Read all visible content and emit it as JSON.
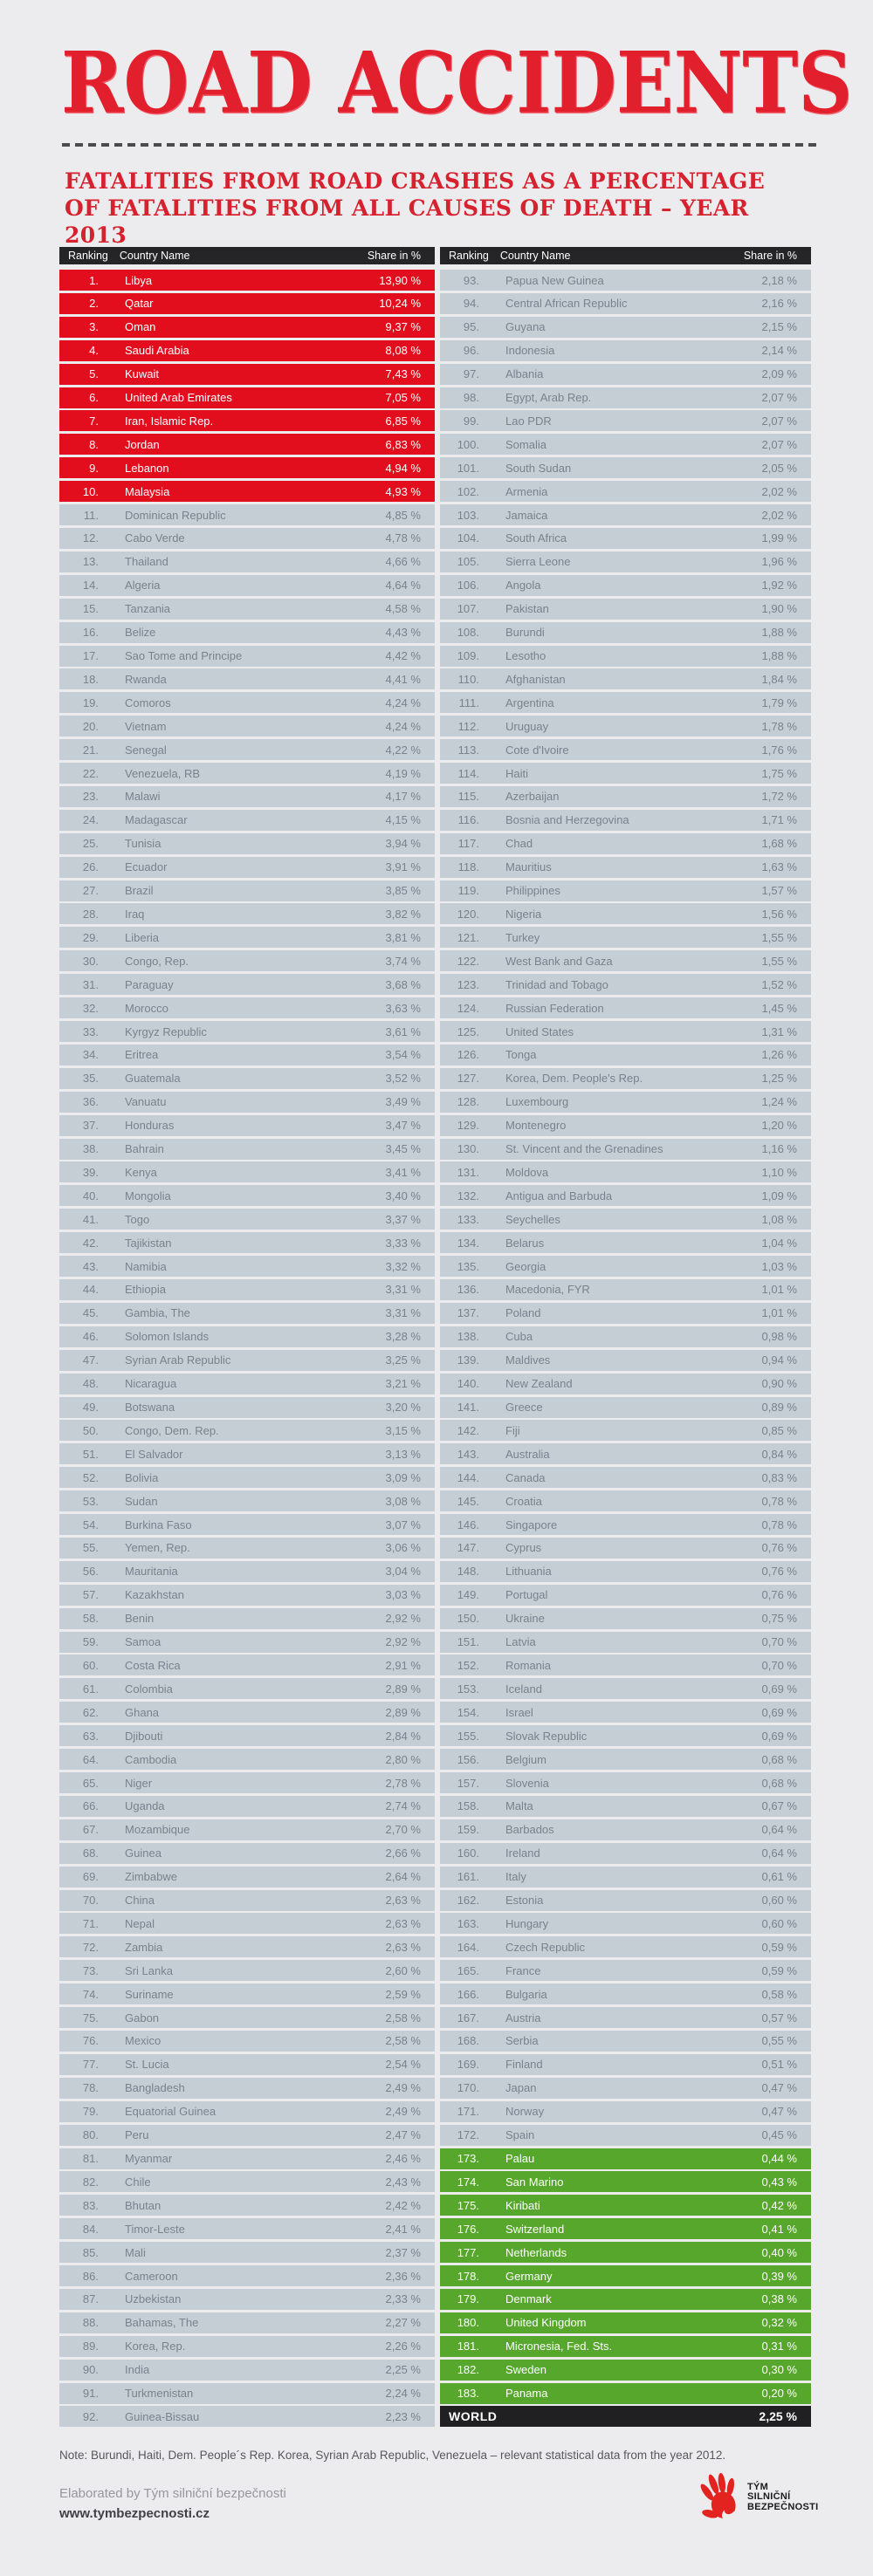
{
  "page": {
    "title": "ROAD ACCIDENTS",
    "subtitle_line1": "FATALITIES FROM ROAD CRASHES AS A PERCENTAGE",
    "subtitle_line2": "OF FATALITIES FROM ALL CAUSES OF DEATH – YEAR 2013"
  },
  "table_headers": {
    "ranking": "Ranking",
    "country": "Country Name",
    "share": "Share in %"
  },
  "chart_data": {
    "type": "table",
    "title": "ROAD ACCIDENTS",
    "subtitle": "FATALITIES FROM ROAD CRASHES AS A PERCENTAGE OF FATALITIES FROM ALL CAUSES OF DEATH – YEAR 2013",
    "columns": [
      "Ranking",
      "Country Name",
      "Share in %"
    ],
    "split_index": 92,
    "highlight": {
      "red_max_rank": 10,
      "green_min_rank": 173
    },
    "rows": [
      {
        "rank": 1,
        "country": "Libya",
        "share": "13,90 %"
      },
      {
        "rank": 2,
        "country": "Qatar",
        "share": "10,24 %"
      },
      {
        "rank": 3,
        "country": "Oman",
        "share": "9,37 %"
      },
      {
        "rank": 4,
        "country": "Saudi Arabia",
        "share": "8,08 %"
      },
      {
        "rank": 5,
        "country": "Kuwait",
        "share": "7,43 %"
      },
      {
        "rank": 6,
        "country": "United Arab Emirates",
        "share": "7,05 %"
      },
      {
        "rank": 7,
        "country": "Iran, Islamic Rep.",
        "share": "6,85 %"
      },
      {
        "rank": 8,
        "country": "Jordan",
        "share": "6,83 %"
      },
      {
        "rank": 9,
        "country": "Lebanon",
        "share": "4,94 %"
      },
      {
        "rank": 10,
        "country": "Malaysia",
        "share": "4,93 %"
      },
      {
        "rank": 11,
        "country": "Dominican Republic",
        "share": "4,85 %"
      },
      {
        "rank": 12,
        "country": "Cabo Verde",
        "share": "4,78 %"
      },
      {
        "rank": 13,
        "country": "Thailand",
        "share": "4,66 %"
      },
      {
        "rank": 14,
        "country": "Algeria",
        "share": "4,64 %"
      },
      {
        "rank": 15,
        "country": "Tanzania",
        "share": "4,58 %"
      },
      {
        "rank": 16,
        "country": "Belize",
        "share": "4,43 %"
      },
      {
        "rank": 17,
        "country": "Sao Tome and Principe",
        "share": "4,42 %"
      },
      {
        "rank": 18,
        "country": "Rwanda",
        "share": "4,41 %"
      },
      {
        "rank": 19,
        "country": "Comoros",
        "share": "4,24 %"
      },
      {
        "rank": 20,
        "country": "Vietnam",
        "share": "4,24 %"
      },
      {
        "rank": 21,
        "country": "Senegal",
        "share": "4,22 %"
      },
      {
        "rank": 22,
        "country": "Venezuela, RB",
        "share": "4,19 %"
      },
      {
        "rank": 23,
        "country": "Malawi",
        "share": "4,17 %"
      },
      {
        "rank": 24,
        "country": "Madagascar",
        "share": "4,15 %"
      },
      {
        "rank": 25,
        "country": "Tunisia",
        "share": "3,94 %"
      },
      {
        "rank": 26,
        "country": "Ecuador",
        "share": "3,91 %"
      },
      {
        "rank": 27,
        "country": "Brazil",
        "share": "3,85 %"
      },
      {
        "rank": 28,
        "country": "Iraq",
        "share": "3,82 %"
      },
      {
        "rank": 29,
        "country": "Liberia",
        "share": "3,81 %"
      },
      {
        "rank": 30,
        "country": "Congo, Rep.",
        "share": "3,74 %"
      },
      {
        "rank": 31,
        "country": "Paraguay",
        "share": "3,68 %"
      },
      {
        "rank": 32,
        "country": "Morocco",
        "share": "3,63 %"
      },
      {
        "rank": 33,
        "country": "Kyrgyz Republic",
        "share": "3,61 %"
      },
      {
        "rank": 34,
        "country": "Eritrea",
        "share": "3,54 %"
      },
      {
        "rank": 35,
        "country": "Guatemala",
        "share": "3,52 %"
      },
      {
        "rank": 36,
        "country": "Vanuatu",
        "share": "3,49 %"
      },
      {
        "rank": 37,
        "country": "Honduras",
        "share": "3,47 %"
      },
      {
        "rank": 38,
        "country": "Bahrain",
        "share": "3,45 %"
      },
      {
        "rank": 39,
        "country": "Kenya",
        "share": "3,41 %"
      },
      {
        "rank": 40,
        "country": "Mongolia",
        "share": "3,40 %"
      },
      {
        "rank": 41,
        "country": "Togo",
        "share": "3,37 %"
      },
      {
        "rank": 42,
        "country": "Tajikistan",
        "share": "3,33 %"
      },
      {
        "rank": 43,
        "country": "Namibia",
        "share": "3,32 %"
      },
      {
        "rank": 44,
        "country": "Ethiopia",
        "share": "3,31 %"
      },
      {
        "rank": 45,
        "country": "Gambia, The",
        "share": "3,31 %"
      },
      {
        "rank": 46,
        "country": "Solomon Islands",
        "share": "3,28 %"
      },
      {
        "rank": 47,
        "country": "Syrian Arab Republic",
        "share": "3,25 %"
      },
      {
        "rank": 48,
        "country": "Nicaragua",
        "share": "3,21 %"
      },
      {
        "rank": 49,
        "country": "Botswana",
        "share": "3,20 %"
      },
      {
        "rank": 50,
        "country": "Congo, Dem. Rep.",
        "share": "3,15 %"
      },
      {
        "rank": 51,
        "country": "El Salvador",
        "share": "3,13 %"
      },
      {
        "rank": 52,
        "country": "Bolivia",
        "share": "3,09 %"
      },
      {
        "rank": 53,
        "country": "Sudan",
        "share": "3,08 %"
      },
      {
        "rank": 54,
        "country": "Burkina Faso",
        "share": "3,07 %"
      },
      {
        "rank": 55,
        "country": "Yemen, Rep.",
        "share": "3,06 %"
      },
      {
        "rank": 56,
        "country": "Mauritania",
        "share": "3,04 %"
      },
      {
        "rank": 57,
        "country": "Kazakhstan",
        "share": "3,03 %"
      },
      {
        "rank": 58,
        "country": "Benin",
        "share": "2,92 %"
      },
      {
        "rank": 59,
        "country": "Samoa",
        "share": "2,92 %"
      },
      {
        "rank": 60,
        "country": "Costa Rica",
        "share": "2,91 %"
      },
      {
        "rank": 61,
        "country": "Colombia",
        "share": "2,89 %"
      },
      {
        "rank": 62,
        "country": "Ghana",
        "share": "2,89 %"
      },
      {
        "rank": 63,
        "country": "Djibouti",
        "share": "2,84 %"
      },
      {
        "rank": 64,
        "country": "Cambodia",
        "share": "2,80 %"
      },
      {
        "rank": 65,
        "country": "Niger",
        "share": "2,78 %"
      },
      {
        "rank": 66,
        "country": "Uganda",
        "share": "2,74 %"
      },
      {
        "rank": 67,
        "country": "Mozambique",
        "share": "2,70 %"
      },
      {
        "rank": 68,
        "country": "Guinea",
        "share": "2,66 %"
      },
      {
        "rank": 69,
        "country": "Zimbabwe",
        "share": "2,64 %"
      },
      {
        "rank": 70,
        "country": "China",
        "share": "2,63 %"
      },
      {
        "rank": 71,
        "country": "Nepal",
        "share": "2,63 %"
      },
      {
        "rank": 72,
        "country": "Zambia",
        "share": "2,63 %"
      },
      {
        "rank": 73,
        "country": "Sri Lanka",
        "share": "2,60 %"
      },
      {
        "rank": 74,
        "country": "Suriname",
        "share": "2,59 %"
      },
      {
        "rank": 75,
        "country": "Gabon",
        "share": "2,58 %"
      },
      {
        "rank": 76,
        "country": "Mexico",
        "share": "2,58 %"
      },
      {
        "rank": 77,
        "country": "St. Lucia",
        "share": "2,54 %"
      },
      {
        "rank": 78,
        "country": "Bangladesh",
        "share": "2,49 %"
      },
      {
        "rank": 79,
        "country": "Equatorial Guinea",
        "share": "2,49 %"
      },
      {
        "rank": 80,
        "country": "Peru",
        "share": "2,47 %"
      },
      {
        "rank": 81,
        "country": "Myanmar",
        "share": "2,46 %"
      },
      {
        "rank": 82,
        "country": "Chile",
        "share": "2,43 %"
      },
      {
        "rank": 83,
        "country": "Bhutan",
        "share": "2,42 %"
      },
      {
        "rank": 84,
        "country": "Timor-Leste",
        "share": "2,41 %"
      },
      {
        "rank": 85,
        "country": "Mali",
        "share": "2,37 %"
      },
      {
        "rank": 86,
        "country": "Cameroon",
        "share": "2,36 %"
      },
      {
        "rank": 87,
        "country": "Uzbekistan",
        "share": "2,33 %"
      },
      {
        "rank": 88,
        "country": "Bahamas, The",
        "share": "2,27 %"
      },
      {
        "rank": 89,
        "country": "Korea, Rep.",
        "share": "2,26 %"
      },
      {
        "rank": 90,
        "country": "India",
        "share": "2,25 %"
      },
      {
        "rank": 91,
        "country": "Turkmenistan",
        "share": "2,24 %"
      },
      {
        "rank": 92,
        "country": "Guinea-Bissau",
        "share": "2,23 %"
      },
      {
        "rank": 93,
        "country": "Papua New Guinea",
        "share": "2,18 %"
      },
      {
        "rank": 94,
        "country": "Central African Republic",
        "share": "2,16 %"
      },
      {
        "rank": 95,
        "country": "Guyana",
        "share": "2,15 %"
      },
      {
        "rank": 96,
        "country": "Indonesia",
        "share": "2,14 %"
      },
      {
        "rank": 97,
        "country": "Albania",
        "share": "2,09 %"
      },
      {
        "rank": 98,
        "country": "Egypt, Arab Rep.",
        "share": "2,07 %"
      },
      {
        "rank": 99,
        "country": "Lao PDR",
        "share": "2,07 %"
      },
      {
        "rank": 100,
        "country": "Somalia",
        "share": "2,07 %"
      },
      {
        "rank": 101,
        "country": "South Sudan",
        "share": "2,05 %"
      },
      {
        "rank": 102,
        "country": "Armenia",
        "share": "2,02 %"
      },
      {
        "rank": 103,
        "country": "Jamaica",
        "share": "2,02 %"
      },
      {
        "rank": 104,
        "country": "South Africa",
        "share": "1,99 %"
      },
      {
        "rank": 105,
        "country": "Sierra Leone",
        "share": "1,96 %"
      },
      {
        "rank": 106,
        "country": "Angola",
        "share": "1,92 %"
      },
      {
        "rank": 107,
        "country": "Pakistan",
        "share": "1,90 %"
      },
      {
        "rank": 108,
        "country": "Burundi",
        "share": "1,88 %"
      },
      {
        "rank": 109,
        "country": "Lesotho",
        "share": "1,88 %"
      },
      {
        "rank": 110,
        "country": "Afghanistan",
        "share": "1,84 %"
      },
      {
        "rank": 111,
        "country": "Argentina",
        "share": "1,79 %"
      },
      {
        "rank": 112,
        "country": "Uruguay",
        "share": "1,78 %"
      },
      {
        "rank": 113,
        "country": "Cote d'Ivoire",
        "share": "1,76 %"
      },
      {
        "rank": 114,
        "country": "Haiti",
        "share": "1,75 %"
      },
      {
        "rank": 115,
        "country": "Azerbaijan",
        "share": "1,72 %"
      },
      {
        "rank": 116,
        "country": "Bosnia and Herzegovina",
        "share": "1,71 %"
      },
      {
        "rank": 117,
        "country": "Chad",
        "share": "1,68 %"
      },
      {
        "rank": 118,
        "country": "Mauritius",
        "share": "1,63 %"
      },
      {
        "rank": 119,
        "country": "Philippines",
        "share": "1,57 %"
      },
      {
        "rank": 120,
        "country": "Nigeria",
        "share": "1,56 %"
      },
      {
        "rank": 121,
        "country": "Turkey",
        "share": "1,55 %"
      },
      {
        "rank": 122,
        "country": "West Bank and Gaza",
        "share": "1,55 %"
      },
      {
        "rank": 123,
        "country": "Trinidad and Tobago",
        "share": "1,52 %"
      },
      {
        "rank": 124,
        "country": "Russian Federation",
        "share": "1,45 %"
      },
      {
        "rank": 125,
        "country": "United States",
        "share": "1,31 %"
      },
      {
        "rank": 126,
        "country": "Tonga",
        "share": "1,26 %"
      },
      {
        "rank": 127,
        "country": "Korea, Dem. People's Rep.",
        "share": "1,25 %"
      },
      {
        "rank": 128,
        "country": "Luxembourg",
        "share": "1,24 %"
      },
      {
        "rank": 129,
        "country": "Montenegro",
        "share": "1,20 %"
      },
      {
        "rank": 130,
        "country": "St. Vincent and the Grenadines",
        "share": "1,16 %"
      },
      {
        "rank": 131,
        "country": "Moldova",
        "share": "1,10 %"
      },
      {
        "rank": 132,
        "country": "Antigua and Barbuda",
        "share": "1,09 %"
      },
      {
        "rank": 133,
        "country": "Seychelles",
        "share": "1,08 %"
      },
      {
        "rank": 134,
        "country": "Belarus",
        "share": "1,04 %"
      },
      {
        "rank": 135,
        "country": "Georgia",
        "share": "1,03 %"
      },
      {
        "rank": 136,
        "country": "Macedonia, FYR",
        "share": "1,01 %"
      },
      {
        "rank": 137,
        "country": "Poland",
        "share": "1,01 %"
      },
      {
        "rank": 138,
        "country": "Cuba",
        "share": "0,98 %"
      },
      {
        "rank": 139,
        "country": "Maldives",
        "share": "0,94 %"
      },
      {
        "rank": 140,
        "country": "New Zealand",
        "share": "0,90 %"
      },
      {
        "rank": 141,
        "country": "Greece",
        "share": "0,89 %"
      },
      {
        "rank": 142,
        "country": "Fiji",
        "share": "0,85 %"
      },
      {
        "rank": 143,
        "country": "Australia",
        "share": "0,84 %"
      },
      {
        "rank": 144,
        "country": "Canada",
        "share": "0,83 %"
      },
      {
        "rank": 145,
        "country": "Croatia",
        "share": "0,78 %"
      },
      {
        "rank": 146,
        "country": "Singapore",
        "share": "0,78 %"
      },
      {
        "rank": 147,
        "country": "Cyprus",
        "share": "0,76 %"
      },
      {
        "rank": 148,
        "country": "Lithuania",
        "share": "0,76 %"
      },
      {
        "rank": 149,
        "country": "Portugal",
        "share": "0,76 %"
      },
      {
        "rank": 150,
        "country": "Ukraine",
        "share": "0,75 %"
      },
      {
        "rank": 151,
        "country": "Latvia",
        "share": "0,70 %"
      },
      {
        "rank": 152,
        "country": "Romania",
        "share": "0,70 %"
      },
      {
        "rank": 153,
        "country": "Iceland",
        "share": "0,69 %"
      },
      {
        "rank": 154,
        "country": "Israel",
        "share": "0,69 %"
      },
      {
        "rank": 155,
        "country": "Slovak Republic",
        "share": "0,69 %"
      },
      {
        "rank": 156,
        "country": "Belgium",
        "share": "0,68 %"
      },
      {
        "rank": 157,
        "country": "Slovenia",
        "share": "0,68 %"
      },
      {
        "rank": 158,
        "country": "Malta",
        "share": "0,67 %"
      },
      {
        "rank": 159,
        "country": "Barbados",
        "share": "0,64 %"
      },
      {
        "rank": 160,
        "country": "Ireland",
        "share": "0,64 %"
      },
      {
        "rank": 161,
        "country": "Italy",
        "share": "0,61 %"
      },
      {
        "rank": 162,
        "country": "Estonia",
        "share": "0,60 %"
      },
      {
        "rank": 163,
        "country": "Hungary",
        "share": "0,60 %"
      },
      {
        "rank": 164,
        "country": "Czech Republic",
        "share": "0,59 %"
      },
      {
        "rank": 165,
        "country": "France",
        "share": "0,59 %"
      },
      {
        "rank": 166,
        "country": "Bulgaria",
        "share": "0,58 %"
      },
      {
        "rank": 167,
        "country": "Austria",
        "share": "0,57 %"
      },
      {
        "rank": 168,
        "country": "Serbia",
        "share": "0,55 %"
      },
      {
        "rank": 169,
        "country": "Finland",
        "share": "0,51 %"
      },
      {
        "rank": 170,
        "country": "Japan",
        "share": "0,47 %"
      },
      {
        "rank": 171,
        "country": "Norway",
        "share": "0,47 %"
      },
      {
        "rank": 172,
        "country": "Spain",
        "share": "0,45 %"
      },
      {
        "rank": 173,
        "country": "Palau",
        "share": "0,44 %"
      },
      {
        "rank": 174,
        "country": "San Marino",
        "share": "0,43 %"
      },
      {
        "rank": 175,
        "country": "Kiribati",
        "share": "0,42 %"
      },
      {
        "rank": 176,
        "country": "Switzerland",
        "share": "0,41 %"
      },
      {
        "rank": 177,
        "country": "Netherlands",
        "share": "0,40 %"
      },
      {
        "rank": 178,
        "country": "Germany",
        "share": "0,39 %"
      },
      {
        "rank": 179,
        "country": "Denmark",
        "share": "0,38 %"
      },
      {
        "rank": 180,
        "country": "United Kingdom",
        "share": "0,32 %"
      },
      {
        "rank": 181,
        "country": "Micronesia, Fed. Sts.",
        "share": "0,31 %"
      },
      {
        "rank": 182,
        "country": "Sweden",
        "share": "0,30 %"
      },
      {
        "rank": 183,
        "country": "Panama",
        "share": "0,20 %"
      }
    ],
    "world_row": {
      "label": "WORLD",
      "share": "2,25 %"
    }
  },
  "footer": {
    "note": "Note: Burundi, Haiti, Dem. People´s Rep. Korea, Syrian Arab Republic, Venezuela – relevant statistical data from the year 2012.",
    "elaborated": "Elaborated by Tým silniční bezpečnosti",
    "website": "www.tymbezpecnosti.cz",
    "logo_line1": "TÝM",
    "logo_line2": "SILNIČNÍ",
    "logo_line3": "BEZPEČNOSTI"
  },
  "colors": {
    "page_bg": "#ececee",
    "title_red": "#e2202d",
    "row_red": "#e20e1e",
    "row_gray": "#c5ced5",
    "row_green": "#56a72c",
    "header_bg": "#252527",
    "world_bg": "#202022",
    "logo_red": "#e2231f"
  }
}
